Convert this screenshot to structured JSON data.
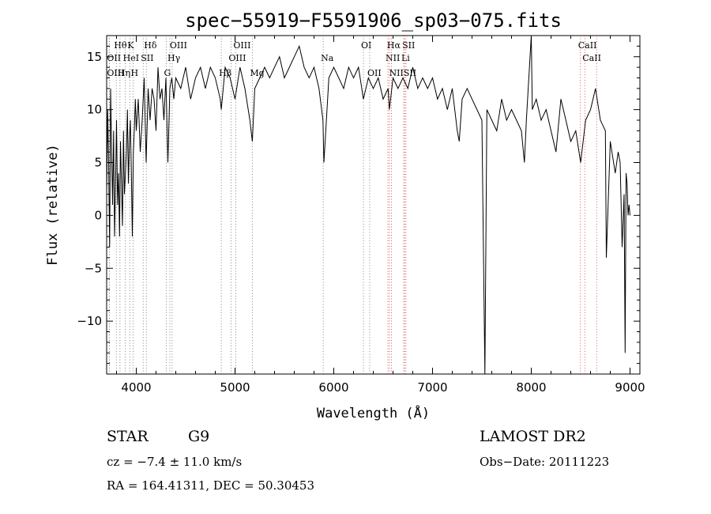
{
  "chart_data": {
    "type": "line",
    "title": "spec−55919−F5591906_sp03−075.fits",
    "xlabel": "Wavelength (Å)",
    "ylabel": "Flux (relative)",
    "xlim": [
      3700,
      9100
    ],
    "ylim": [
      -15,
      17
    ],
    "xticks": [
      {
        "value": 4000,
        "label": "4000"
      },
      {
        "value": 5000,
        "label": "5000"
      },
      {
        "value": 6000,
        "label": "6000"
      },
      {
        "value": 7000,
        "label": "7000"
      },
      {
        "value": 8000,
        "label": "8000"
      },
      {
        "value": 9000,
        "label": "9000"
      }
    ],
    "yticks": [
      {
        "value": -10,
        "label": "−10"
      },
      {
        "value": -5,
        "label": "−5"
      },
      {
        "value": 0,
        "label": "0"
      },
      {
        "value": 5,
        "label": "5"
      },
      {
        "value": 10,
        "label": "10"
      },
      {
        "value": 15,
        "label": "15"
      }
    ],
    "series": [
      {
        "x": [
          3700,
          3710,
          3720,
          3730,
          3740,
          3750,
          3760,
          3770,
          3780,
          3790,
          3800,
          3810,
          3820,
          3830,
          3840,
          3850,
          3860,
          3870,
          3880,
          3890,
          3900,
          3910,
          3920,
          3930,
          3940,
          3950,
          3960,
          3970,
          3980,
          3990,
          4000,
          4020,
          4040,
          4060,
          4080,
          4100,
          4120,
          4140,
          4160,
          4180,
          4200,
          4220,
          4240,
          4260,
          4280,
          4300,
          4320,
          4340,
          4360,
          4380,
          4400,
          4450,
          4500,
          4550,
          4600,
          4650,
          4700,
          4750,
          4800,
          4850,
          4861,
          4900,
          4950,
          5000,
          5050,
          5100,
          5150,
          5175,
          5200,
          5250,
          5300,
          5350,
          5400,
          5450,
          5500,
          5550,
          5600,
          5650,
          5700,
          5750,
          5800,
          5850,
          5890,
          5900,
          5950,
          6000,
          6050,
          6100,
          6150,
          6200,
          6250,
          6300,
          6350,
          6400,
          6450,
          6500,
          6550,
          6563,
          6600,
          6650,
          6700,
          6750,
          6800,
          6850,
          6900,
          6950,
          7000,
          7050,
          7100,
          7150,
          7200,
          7250,
          7270,
          7300,
          7350,
          7400,
          7450,
          7500,
          7530,
          7550,
          7600,
          7650,
          7700,
          7750,
          7800,
          7850,
          7900,
          7930,
          7950,
          8000,
          8010,
          8050,
          8100,
          8150,
          8200,
          8250,
          8300,
          8350,
          8400,
          8450,
          8500,
          8550,
          8600,
          8650,
          8700,
          8750,
          8760,
          8800,
          8850,
          8880,
          8900,
          8920,
          8940,
          8950,
          8960,
          8970,
          8980,
          8990,
          9000
        ],
        "y": [
          2,
          10,
          5,
          -3,
          12,
          6,
          1,
          8,
          -2,
          3,
          9,
          1,
          4,
          -2,
          7,
          3,
          -1,
          8,
          2,
          4,
          6,
          10,
          3,
          7,
          9,
          4,
          -2,
          6,
          8,
          11,
          8,
          11,
          6,
          9,
          13,
          5,
          12,
          9,
          12,
          11,
          8,
          14,
          11,
          12,
          9,
          13,
          5,
          12,
          13,
          11,
          13,
          12,
          14,
          11,
          13,
          14,
          12,
          14,
          13,
          11,
          10,
          14,
          13,
          11,
          14,
          12,
          9,
          7,
          12,
          13,
          14,
          13,
          14,
          15,
          13,
          14,
          15,
          16,
          14,
          13,
          14,
          12,
          9,
          5,
          13,
          14,
          13,
          12,
          14,
          13,
          14,
          11,
          13,
          12,
          13,
          11,
          12,
          10,
          13,
          12,
          13,
          12,
          14,
          12,
          13,
          12,
          13,
          11,
          12,
          10,
          12,
          8,
          7,
          11,
          12,
          11,
          10,
          9,
          -15,
          10,
          9,
          8,
          11,
          9,
          10,
          9,
          8,
          5,
          9,
          17,
          10,
          11,
          9,
          10,
          8,
          6,
          11,
          9,
          7,
          8,
          5,
          9,
          10,
          12,
          9,
          8,
          -4,
          7,
          4,
          6,
          5,
          -3,
          2,
          -13,
          4,
          3,
          0,
          1,
          0
        ]
      }
    ],
    "lines": [
      {
        "label": "Hθ",
        "x": 3798
      },
      {
        "label": "K",
        "x": 3934
      },
      {
        "label": "Hδ",
        "x": 4102
      },
      {
        "label": "OIII",
        "x": 4363
      },
      {
        "label": "OIII",
        "x": 5007
      },
      {
        "label": "OI",
        "x": 6300
      },
      {
        "label": "Hα",
        "x": 6563
      },
      {
        "label": "SII",
        "x": 6717
      },
      {
        "label": "CaII",
        "x": 8498
      },
      {
        "label": "OII",
        "x": 3727
      },
      {
        "label": "HeI",
        "x": 3889
      },
      {
        "label": "SII",
        "x": 4070
      },
      {
        "label": "Hγ",
        "x": 4340
      },
      {
        "label": "OIII",
        "x": 4959
      },
      {
        "label": "Na",
        "x": 5893
      },
      {
        "label": "NII",
        "x": 6548
      },
      {
        "label": "Li",
        "x": 6708
      },
      {
        "label": "CaII",
        "x": 8542
      },
      {
        "label": "OIII",
        "x": 3727
      },
      {
        "label": "Hη",
        "x": 3835
      },
      {
        "label": "H",
        "x": 3968
      },
      {
        "label": "G",
        "x": 4304
      },
      {
        "label": "Hβ",
        "x": 4861
      },
      {
        "label": "Mg",
        "x": 5175
      },
      {
        "label": "OII",
        "x": 6364
      },
      {
        "label": "NII",
        "x": 6584
      },
      {
        "label": "SII",
        "x": 6731
      },
      {
        "label": "CaII",
        "x": 8662
      }
    ],
    "grid": false,
    "legend": "none"
  },
  "info": {
    "object_class": "STAR",
    "subclass": "G9",
    "survey": "LAMOST DR2",
    "velocity": "cz = −7.4 ± 11.0 km/s",
    "obs_date": "Obs−Date: 20111223",
    "coords": "RA = 164.41311, DEC =  50.30453"
  }
}
